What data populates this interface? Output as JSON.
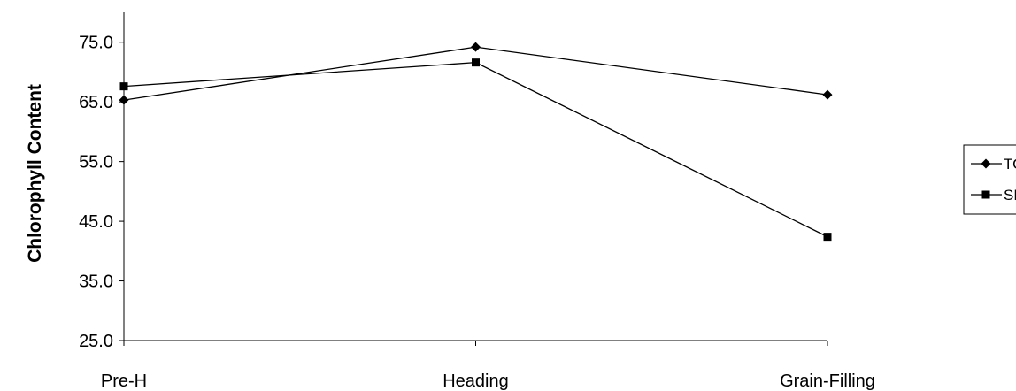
{
  "chart_data": {
    "type": "line",
    "categories": [
      "Pre-H",
      "Heading",
      "Grain-Filling"
    ],
    "series": [
      {
        "name": "TOL",
        "marker": "diamond",
        "values": [
          65.3,
          74.2,
          66.2
        ]
      },
      {
        "name": "SEN",
        "marker": "square",
        "values": [
          67.6,
          71.6,
          42.4
        ]
      }
    ],
    "ylabel": "Chlorophyll Content",
    "xlabel": "",
    "ylim": [
      25.0,
      80.0
    ],
    "yticks": [
      "25.0",
      "35.0",
      "45.0",
      "55.0",
      "65.0",
      "75.0"
    ],
    "ytick_values": [
      25,
      35,
      45,
      55,
      65,
      75
    ],
    "grid": false,
    "legend": "right",
    "line_color": "#000000"
  }
}
